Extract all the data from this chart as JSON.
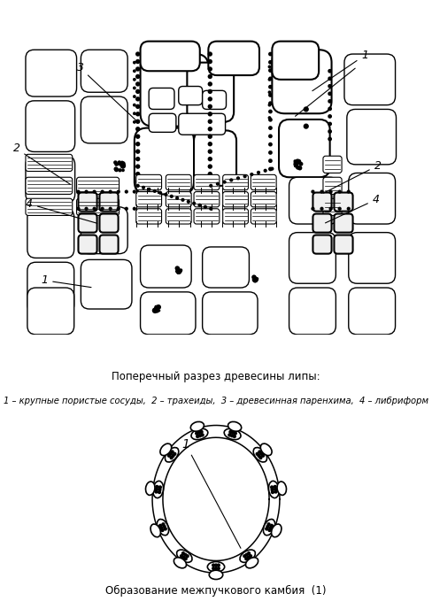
{
  "title_top": "Поперечный разрез древесины липы:",
  "legend_top": "1 – крупные пористые сосуды,  2 – трахеиды,  3 – древесинная паренхима,  4 – либриформ",
  "title_bottom": "Образование межпучкового камбия  (1)",
  "bg_color": "#ffffff"
}
